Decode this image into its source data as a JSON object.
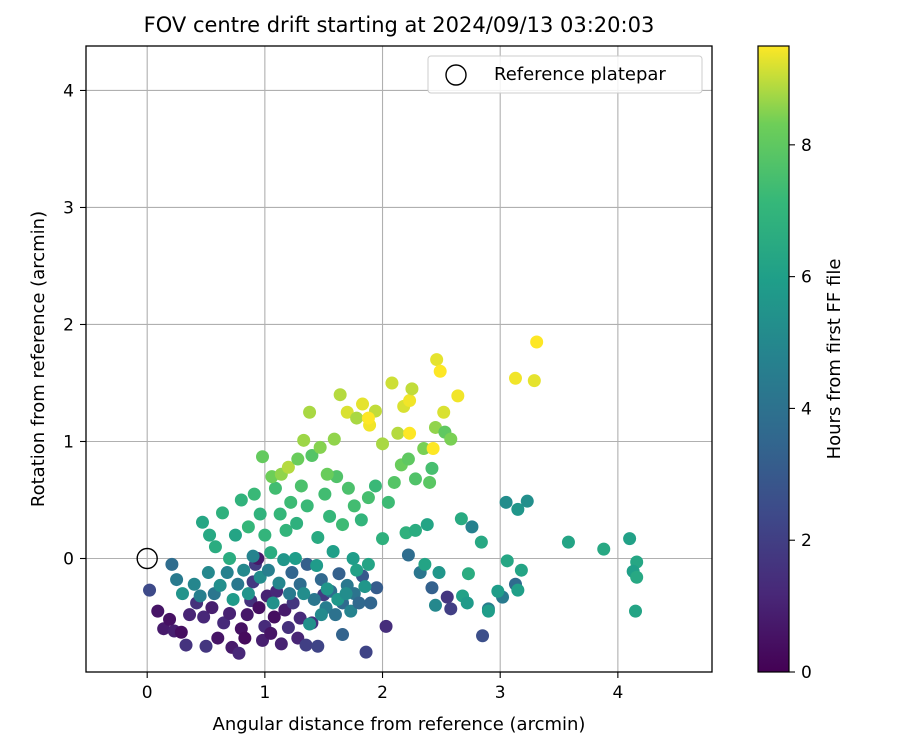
{
  "chart_data": {
    "type": "scatter",
    "title": "FOV centre drift starting at 2024/09/13 03:20:03",
    "xlabel": "Angular distance from reference (arcmin)",
    "ylabel": "Rotation from reference (arcmin)",
    "xlim": [
      -0.52,
      4.8
    ],
    "ylim": [
      -0.97,
      4.38
    ],
    "xticks": [
      0,
      1,
      2,
      3,
      4
    ],
    "yticks": [
      0,
      1,
      2,
      3,
      4
    ],
    "grid": true,
    "legend": {
      "placement": "top-right",
      "entries": [
        "Reference platepar"
      ]
    },
    "reference_point": {
      "name": "Reference platepar",
      "x": 0,
      "y": 0
    },
    "colorbar": {
      "label": "Hours from first FF file",
      "colormap": "viridis",
      "range": [
        0,
        9.5
      ],
      "ticks": [
        0,
        2,
        4,
        6,
        8
      ]
    },
    "points": [
      {
        "x": 0.02,
        "y": -0.27,
        "c": 2.4
      },
      {
        "x": 0.09,
        "y": -0.45,
        "c": 0.6
      },
      {
        "x": 0.14,
        "y": -0.6,
        "c": 0.8
      },
      {
        "x": 0.19,
        "y": -0.52,
        "c": 0.5
      },
      {
        "x": 0.23,
        "y": -0.62,
        "c": 0.9
      },
      {
        "x": 0.29,
        "y": -0.63,
        "c": 0.4
      },
      {
        "x": 0.33,
        "y": -0.74,
        "c": 1.6
      },
      {
        "x": 0.36,
        "y": -0.48,
        "c": 1.1
      },
      {
        "x": 0.42,
        "y": -0.38,
        "c": 1.5
      },
      {
        "x": 0.48,
        "y": -0.5,
        "c": 1.2
      },
      {
        "x": 0.5,
        "y": -0.75,
        "c": 1.7
      },
      {
        "x": 0.55,
        "y": -0.42,
        "c": 0.9
      },
      {
        "x": 0.6,
        "y": -0.68,
        "c": 0.6
      },
      {
        "x": 0.65,
        "y": -0.55,
        "c": 1.3
      },
      {
        "x": 0.7,
        "y": -0.47,
        "c": 1.0
      },
      {
        "x": 0.72,
        "y": -0.76,
        "c": 0.8
      },
      {
        "x": 0.78,
        "y": -0.81,
        "c": 1.2
      },
      {
        "x": 0.8,
        "y": -0.6,
        "c": 0.5
      },
      {
        "x": 0.83,
        "y": -0.68,
        "c": 0.3
      },
      {
        "x": 0.85,
        "y": -0.48,
        "c": 0.7
      },
      {
        "x": 0.88,
        "y": -0.36,
        "c": 1.5
      },
      {
        "x": 0.9,
        "y": -0.2,
        "c": 1.8
      },
      {
        "x": 0.92,
        "y": -0.05,
        "c": 1.9
      },
      {
        "x": 0.94,
        "y": 0.0,
        "c": 0.7
      },
      {
        "x": 0.95,
        "y": -0.42,
        "c": 0.4
      },
      {
        "x": 0.98,
        "y": -0.7,
        "c": 0.9
      },
      {
        "x": 1.0,
        "y": -0.58,
        "c": 1.3
      },
      {
        "x": 1.02,
        "y": -0.32,
        "c": 1.0
      },
      {
        "x": 1.05,
        "y": -0.64,
        "c": 0.6
      },
      {
        "x": 1.08,
        "y": -0.5,
        "c": 0.4
      },
      {
        "x": 1.1,
        "y": -0.28,
        "c": 1.2
      },
      {
        "x": 1.14,
        "y": -0.73,
        "c": 1.0
      },
      {
        "x": 1.17,
        "y": -0.44,
        "c": 0.8
      },
      {
        "x": 1.2,
        "y": -0.59,
        "c": 1.5
      },
      {
        "x": 1.24,
        "y": -0.38,
        "c": 1.7
      },
      {
        "x": 1.28,
        "y": -0.68,
        "c": 1.1
      },
      {
        "x": 1.3,
        "y": -0.51,
        "c": 1.3
      },
      {
        "x": 1.35,
        "y": -0.74,
        "c": 2.0
      },
      {
        "x": 1.4,
        "y": -0.55,
        "c": 1.6
      },
      {
        "x": 1.45,
        "y": -0.75,
        "c": 2.2
      },
      {
        "x": 1.5,
        "y": -0.31,
        "c": 1.9
      },
      {
        "x": 1.23,
        "y": -0.12,
        "c": 3.5
      },
      {
        "x": 1.3,
        "y": -0.22,
        "c": 3.8
      },
      {
        "x": 1.36,
        "y": -0.05,
        "c": 3.2
      },
      {
        "x": 1.42,
        "y": -0.35,
        "c": 4.2
      },
      {
        "x": 1.48,
        "y": -0.18,
        "c": 3.6
      },
      {
        "x": 1.52,
        "y": -0.42,
        "c": 4.5
      },
      {
        "x": 1.56,
        "y": -0.28,
        "c": 3.9
      },
      {
        "x": 1.6,
        "y": -0.48,
        "c": 4.0
      },
      {
        "x": 1.63,
        "y": -0.13,
        "c": 3.3
      },
      {
        "x": 1.66,
        "y": -0.38,
        "c": 3.7
      },
      {
        "x": 1.7,
        "y": -0.23,
        "c": 4.3
      },
      {
        "x": 1.73,
        "y": -0.45,
        "c": 4.8
      },
      {
        "x": 1.76,
        "y": -0.3,
        "c": 4.1
      },
      {
        "x": 1.8,
        "y": -0.38,
        "c": 3.6
      },
      {
        "x": 1.83,
        "y": -0.15,
        "c": 3.0
      },
      {
        "x": 1.86,
        "y": -0.8,
        "c": 2.2
      },
      {
        "x": 1.9,
        "y": -0.38,
        "c": 3.5
      },
      {
        "x": 1.95,
        "y": -0.25,
        "c": 3.1
      },
      {
        "x": 1.66,
        "y": -0.65,
        "c": 3.4
      },
      {
        "x": 2.03,
        "y": -0.58,
        "c": 1.4
      },
      {
        "x": 2.22,
        "y": 0.03,
        "c": 3.8
      },
      {
        "x": 2.32,
        "y": -0.12,
        "c": 4.2
      },
      {
        "x": 2.42,
        "y": -0.25,
        "c": 3.3
      },
      {
        "x": 2.45,
        "y": -0.4,
        "c": 5.0
      },
      {
        "x": 2.55,
        "y": -0.33,
        "c": 1.7
      },
      {
        "x": 2.58,
        "y": -0.43,
        "c": 2.0
      },
      {
        "x": 2.76,
        "y": 0.27,
        "c": 4.7
      },
      {
        "x": 2.85,
        "y": -0.66,
        "c": 2.6
      },
      {
        "x": 2.9,
        "y": -0.43,
        "c": 4.5
      },
      {
        "x": 3.02,
        "y": -0.33,
        "c": 4.4
      },
      {
        "x": 3.05,
        "y": 0.48,
        "c": 5.2
      },
      {
        "x": 3.13,
        "y": -0.22,
        "c": 3.7
      },
      {
        "x": 3.15,
        "y": 0.42,
        "c": 5.6
      },
      {
        "x": 3.23,
        "y": 0.49,
        "c": 5.3
      },
      {
        "x": 2.42,
        "y": 0.77,
        "c": 7.5
      },
      {
        "x": 3.58,
        "y": 0.14,
        "c": 6.2
      },
      {
        "x": 3.88,
        "y": 0.08,
        "c": 6.4
      },
      {
        "x": 4.1,
        "y": 0.17,
        "c": 6.1
      },
      {
        "x": 4.16,
        "y": -0.03,
        "c": 6.3
      },
      {
        "x": 4.13,
        "y": -0.11,
        "c": 6.0
      },
      {
        "x": 4.16,
        "y": -0.16,
        "c": 6.4
      },
      {
        "x": 4.15,
        "y": -0.45,
        "c": 6.2
      },
      {
        "x": 3.06,
        "y": -0.02,
        "c": 6.3
      },
      {
        "x": 3.15,
        "y": -0.27,
        "c": 6.0
      },
      {
        "x": 3.18,
        "y": -0.1,
        "c": 6.2
      },
      {
        "x": 2.68,
        "y": -0.32,
        "c": 6.1
      },
      {
        "x": 2.72,
        "y": -0.38,
        "c": 5.8
      },
      {
        "x": 2.84,
        "y": 0.14,
        "c": 6.4
      },
      {
        "x": 2.67,
        "y": 0.34,
        "c": 6.5
      },
      {
        "x": 2.73,
        "y": -0.13,
        "c": 6.6
      },
      {
        "x": 2.9,
        "y": -0.45,
        "c": 5.9
      },
      {
        "x": 2.98,
        "y": -0.28,
        "c": 5.9
      },
      {
        "x": 2.2,
        "y": 0.22,
        "c": 6.8
      },
      {
        "x": 2.28,
        "y": 0.24,
        "c": 6.6
      },
      {
        "x": 2.38,
        "y": 0.29,
        "c": 6.2
      },
      {
        "x": 2.48,
        "y": -0.12,
        "c": 5.6
      },
      {
        "x": 2.36,
        "y": -0.05,
        "c": 6.2
      },
      {
        "x": 0.21,
        "y": -0.05,
        "c": 3.8
      },
      {
        "x": 0.25,
        "y": -0.18,
        "c": 4.4
      },
      {
        "x": 0.3,
        "y": -0.3,
        "c": 5.5
      },
      {
        "x": 0.4,
        "y": -0.22,
        "c": 4.9
      },
      {
        "x": 0.45,
        "y": -0.32,
        "c": 4.6
      },
      {
        "x": 0.52,
        "y": -0.12,
        "c": 5.0
      },
      {
        "x": 0.57,
        "y": -0.3,
        "c": 4.2
      },
      {
        "x": 0.62,
        "y": -0.23,
        "c": 5.3
      },
      {
        "x": 0.68,
        "y": -0.12,
        "c": 4.7
      },
      {
        "x": 0.73,
        "y": -0.35,
        "c": 5.8
      },
      {
        "x": 0.77,
        "y": -0.22,
        "c": 4.3
      },
      {
        "x": 0.82,
        "y": -0.1,
        "c": 5.0
      },
      {
        "x": 0.86,
        "y": -0.3,
        "c": 5.5
      },
      {
        "x": 0.9,
        "y": 0.02,
        "c": 4.8
      },
      {
        "x": 0.96,
        "y": -0.16,
        "c": 5.2
      },
      {
        "x": 1.03,
        "y": -0.1,
        "c": 4.6
      },
      {
        "x": 1.07,
        "y": -0.38,
        "c": 5.4
      },
      {
        "x": 1.12,
        "y": -0.21,
        "c": 4.9
      },
      {
        "x": 1.16,
        "y": -0.01,
        "c": 5.6
      },
      {
        "x": 1.21,
        "y": -0.3,
        "c": 4.4
      },
      {
        "x": 1.26,
        "y": 0.0,
        "c": 5.9
      },
      {
        "x": 1.33,
        "y": -0.3,
        "c": 5.2
      },
      {
        "x": 1.38,
        "y": -0.56,
        "c": 5.4
      },
      {
        "x": 1.44,
        "y": -0.06,
        "c": 5.8
      },
      {
        "x": 1.48,
        "y": -0.48,
        "c": 5.1
      },
      {
        "x": 1.53,
        "y": -0.26,
        "c": 5.6
      },
      {
        "x": 1.58,
        "y": 0.06,
        "c": 6.0
      },
      {
        "x": 1.62,
        "y": -0.35,
        "c": 5.7
      },
      {
        "x": 1.69,
        "y": -0.3,
        "c": 5.2
      },
      {
        "x": 1.75,
        "y": 0.0,
        "c": 5.9
      },
      {
        "x": 1.78,
        "y": -0.1,
        "c": 6.1
      },
      {
        "x": 1.85,
        "y": -0.24,
        "c": 5.6
      },
      {
        "x": 1.88,
        "y": -0.05,
        "c": 6.2
      },
      {
        "x": 0.47,
        "y": 0.31,
        "c": 6.3
      },
      {
        "x": 0.53,
        "y": 0.2,
        "c": 6.4
      },
      {
        "x": 0.58,
        "y": 0.1,
        "c": 6.6
      },
      {
        "x": 0.64,
        "y": 0.39,
        "c": 6.8
      },
      {
        "x": 0.7,
        "y": 0.0,
        "c": 6.6
      },
      {
        "x": 0.75,
        "y": 0.2,
        "c": 6.2
      },
      {
        "x": 0.8,
        "y": 0.5,
        "c": 6.9
      },
      {
        "x": 0.86,
        "y": 0.27,
        "c": 7.1
      },
      {
        "x": 0.91,
        "y": 0.55,
        "c": 7.2
      },
      {
        "x": 0.96,
        "y": 0.38,
        "c": 6.9
      },
      {
        "x": 1.0,
        "y": 0.2,
        "c": 7.0
      },
      {
        "x": 1.05,
        "y": 0.05,
        "c": 6.6
      },
      {
        "x": 1.09,
        "y": 0.6,
        "c": 7.4
      },
      {
        "x": 1.13,
        "y": 0.38,
        "c": 7.1
      },
      {
        "x": 1.18,
        "y": 0.24,
        "c": 7.0
      },
      {
        "x": 1.22,
        "y": 0.48,
        "c": 7.3
      },
      {
        "x": 1.27,
        "y": 0.3,
        "c": 6.8
      },
      {
        "x": 1.31,
        "y": 0.62,
        "c": 7.6
      },
      {
        "x": 1.36,
        "y": 0.45,
        "c": 7.2
      },
      {
        "x": 1.4,
        "y": 0.88,
        "c": 7.8
      },
      {
        "x": 1.45,
        "y": 0.18,
        "c": 6.5
      },
      {
        "x": 1.51,
        "y": 0.55,
        "c": 7.4
      },
      {
        "x": 1.55,
        "y": 0.36,
        "c": 7.1
      },
      {
        "x": 1.61,
        "y": 0.7,
        "c": 7.7
      },
      {
        "x": 1.66,
        "y": 0.29,
        "c": 7.3
      },
      {
        "x": 1.71,
        "y": 0.6,
        "c": 7.6
      },
      {
        "x": 1.76,
        "y": 0.45,
        "c": 7.4
      },
      {
        "x": 1.82,
        "y": 0.33,
        "c": 7.0
      },
      {
        "x": 1.88,
        "y": 0.52,
        "c": 7.5
      },
      {
        "x": 1.94,
        "y": 0.62,
        "c": 7.2
      },
      {
        "x": 2.0,
        "y": 0.17,
        "c": 6.8
      },
      {
        "x": 2.05,
        "y": 0.48,
        "c": 7.3
      },
      {
        "x": 2.1,
        "y": 0.65,
        "c": 7.8
      },
      {
        "x": 2.16,
        "y": 0.8,
        "c": 8.2
      },
      {
        "x": 2.22,
        "y": 0.85,
        "c": 8.0
      },
      {
        "x": 2.28,
        "y": 0.68,
        "c": 7.7
      },
      {
        "x": 2.35,
        "y": 0.94,
        "c": 8.4
      },
      {
        "x": 2.4,
        "y": 0.65,
        "c": 7.9
      },
      {
        "x": 2.45,
        "y": 1.12,
        "c": 8.6
      },
      {
        "x": 2.53,
        "y": 1.08,
        "c": 8.0
      },
      {
        "x": 0.98,
        "y": 0.87,
        "c": 8.1
      },
      {
        "x": 1.06,
        "y": 0.7,
        "c": 8.3
      },
      {
        "x": 1.14,
        "y": 0.72,
        "c": 8.6
      },
      {
        "x": 1.2,
        "y": 0.78,
        "c": 8.9
      },
      {
        "x": 1.28,
        "y": 0.85,
        "c": 8.2
      },
      {
        "x": 1.33,
        "y": 1.01,
        "c": 8.7
      },
      {
        "x": 1.38,
        "y": 1.25,
        "c": 8.8
      },
      {
        "x": 1.47,
        "y": 0.95,
        "c": 8.5
      },
      {
        "x": 1.53,
        "y": 0.72,
        "c": 8.2
      },
      {
        "x": 1.59,
        "y": 1.02,
        "c": 8.6
      },
      {
        "x": 1.64,
        "y": 1.4,
        "c": 8.9
      },
      {
        "x": 1.7,
        "y": 1.25,
        "c": 9.2
      },
      {
        "x": 1.78,
        "y": 1.2,
        "c": 8.8
      },
      {
        "x": 1.83,
        "y": 1.32,
        "c": 9.3
      },
      {
        "x": 1.89,
        "y": 1.14,
        "c": 9.4
      },
      {
        "x": 1.94,
        "y": 1.26,
        "c": 9.0
      },
      {
        "x": 2.0,
        "y": 0.98,
        "c": 8.8
      },
      {
        "x": 2.08,
        "y": 1.5,
        "c": 9.1
      },
      {
        "x": 2.13,
        "y": 1.07,
        "c": 8.9
      },
      {
        "x": 2.18,
        "y": 1.3,
        "c": 9.2
      },
      {
        "x": 2.23,
        "y": 1.35,
        "c": 9.4
      },
      {
        "x": 2.25,
        "y": 1.45,
        "c": 9.0
      },
      {
        "x": 2.46,
        "y": 1.7,
        "c": 9.3
      },
      {
        "x": 2.49,
        "y": 1.6,
        "c": 9.5
      },
      {
        "x": 2.52,
        "y": 1.25,
        "c": 9.2
      },
      {
        "x": 2.64,
        "y": 1.39,
        "c": 9.4
      },
      {
        "x": 3.13,
        "y": 1.54,
        "c": 9.4
      },
      {
        "x": 3.29,
        "y": 1.52,
        "c": 9.3
      },
      {
        "x": 3.31,
        "y": 1.85,
        "c": 9.5
      },
      {
        "x": 2.23,
        "y": 1.07,
        "c": 9.5
      },
      {
        "x": 1.88,
        "y": 1.2,
        "c": 9.6
      },
      {
        "x": 2.58,
        "y": 1.02,
        "c": 8.4
      },
      {
        "x": 2.43,
        "y": 0.94,
        "c": 9.5
      }
    ]
  }
}
